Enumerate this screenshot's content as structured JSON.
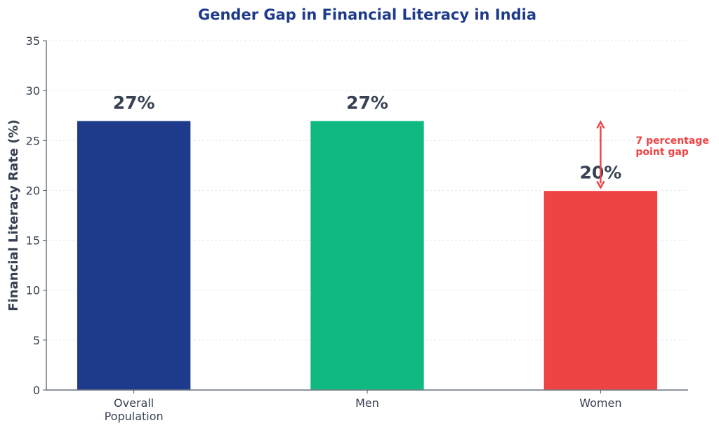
{
  "chart_data": {
    "type": "bar",
    "title": "Gender Gap in Financial Literacy in India",
    "xlabel": "",
    "ylabel": "Financial Literacy Rate (%)",
    "categories": [
      "Overall\nPopulation",
      "Men",
      "Women"
    ],
    "values": [
      27,
      27,
      20
    ],
    "data_labels": [
      "27%",
      "27%",
      "20%"
    ],
    "colors": [
      "#1e3a8a",
      "#10b981",
      "#ef4444"
    ],
    "ylim": [
      0,
      35
    ],
    "yticks": [
      0,
      5,
      10,
      15,
      20,
      25,
      30,
      35
    ],
    "grid": true,
    "annotation": {
      "text": "7 percentage\npoint gap",
      "from": 20,
      "to": 27,
      "category": "Women",
      "color": "#ef4444"
    },
    "title_color": "#1e3a8a",
    "text_color": "#374151"
  }
}
